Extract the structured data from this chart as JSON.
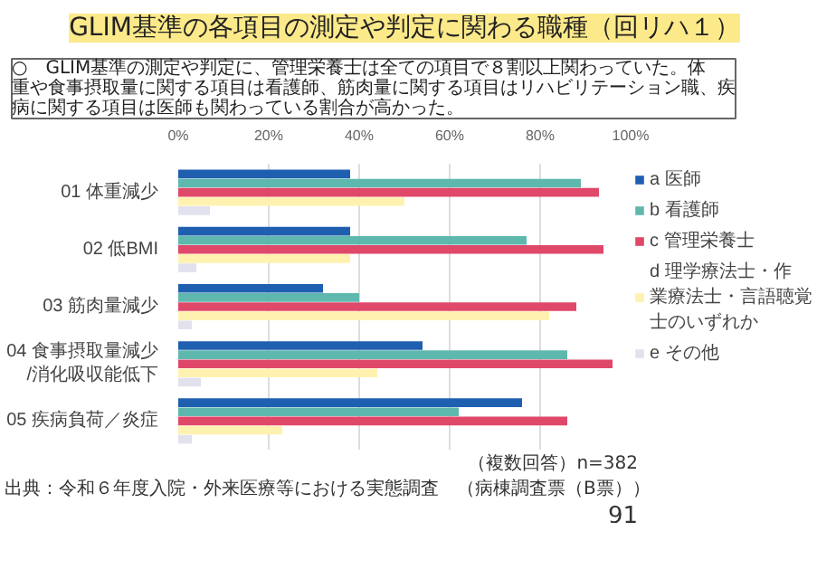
{
  "chart_data": {
    "type": "bar",
    "orientation": "horizontal",
    "title": "GLIM基準の各項目の測定や判定に関わる職種（回リハ１）",
    "subtitle": "○　GLIM基準の測定や判定に、管理栄養士は全ての項目で８割以上関わっていた。体重や食事摂取量に関する項目は看護師、筋肉量に関する項目はリハビリテーション職、疾病に関する項目は医師も関わっている割合が高かった。",
    "categories": [
      "01 体重減少",
      "02 低BMI",
      "03 筋肉量減少",
      "04 食事摂取量減少/消化吸収能低下",
      "05 疾病負荷／炎症"
    ],
    "series": [
      {
        "name": "a 医師",
        "color": "#1f5fb0",
        "values": [
          38,
          38,
          32,
          54,
          76
        ]
      },
      {
        "name": "b 看護師",
        "color": "#5fb8ad",
        "values": [
          89,
          77,
          40,
          86,
          62
        ]
      },
      {
        "name": "c 管理栄養士",
        "color": "#e0486a",
        "values": [
          93,
          94,
          88,
          96,
          86
        ]
      },
      {
        "name": "d 理学療法士・作業療法士・言語聴覚士のいずれか",
        "color": "#fff2b0",
        "values": [
          50,
          38,
          82,
          44,
          23
        ]
      },
      {
        "name": "e その他",
        "color": "#e2e2ee",
        "values": [
          7,
          4,
          3,
          5,
          3
        ]
      }
    ],
    "xlim": [
      0,
      100
    ],
    "xticks": [
      {
        "value": 0,
        "label": "0%"
      },
      {
        "value": 20,
        "label": "20%"
      },
      {
        "value": 40,
        "label": "40%"
      },
      {
        "value": 60,
        "label": "60%"
      },
      {
        "value": 80,
        "label": "80%"
      },
      {
        "value": 100,
        "label": "100%"
      }
    ],
    "grid": "x",
    "legend": "right",
    "annotations": [
      "（複数回答）n=382",
      "出典：令和６年度入院・外来医療等における実態調査　（病棟調査票（B票））",
      "91"
    ]
  }
}
